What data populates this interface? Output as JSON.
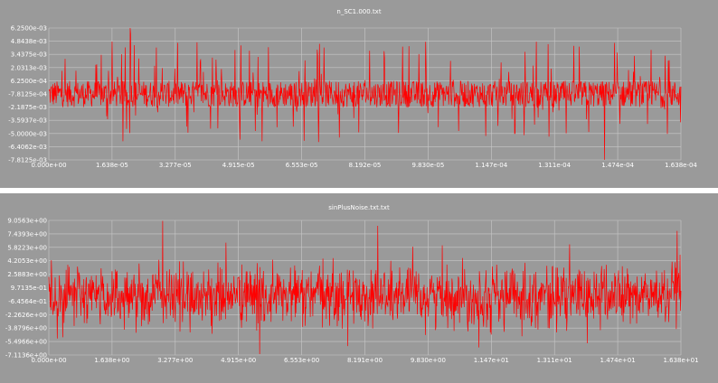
{
  "colors": {
    "background": "#9a9a9a",
    "grid": "#c8c8c8",
    "signal": "#ff0000",
    "separator": "#ffffff",
    "text": "#ffffff"
  },
  "chart_data": [
    {
      "type": "line",
      "title": "n_SC1.000.txt",
      "xlabel": "",
      "ylabel": "",
      "grid": true,
      "xlim": [
        0,
        0.0001638
      ],
      "ylim": [
        -0.0078125,
        0.00625
      ],
      "x_ticks": [
        "0.000e+00",
        "1.638e-05",
        "3.277e-05",
        "4.915e-05",
        "6.553e-05",
        "8.192e-05",
        "9.830e-05",
        "1.147e-04",
        "1.311e-04",
        "1.474e-04",
        "1.638e-04"
      ],
      "y_ticks": [
        "6.2500e-03",
        "4.8438e-03",
        "3.4375e-03",
        "2.0313e-03",
        "6.2500e-04",
        "-7.8125e-04",
        "-2.1875e-03",
        "-3.5937e-03",
        "-5.0000e-03",
        "-6.4062e-03",
        "-7.8125e-03"
      ],
      "series": [
        {
          "values_summary": "dense noise signal, mostly within about -0.0022 to 0.0006 with sparse spikes",
          "band_low": -0.0022,
          "band_high": 0.00062,
          "spike_min": -0.0078,
          "spike_max": 0.00625
        }
      ]
    },
    {
      "type": "line",
      "title": "sinPlusNoise.txt.txt",
      "xlabel": "",
      "ylabel": "",
      "grid": true,
      "xlim": [
        0,
        16.38
      ],
      "ylim": [
        -7.1136,
        9.0563
      ],
      "x_ticks": [
        "0.000e+00",
        "1.638e+00",
        "3.277e+00",
        "4.915e+00",
        "6.553e+00",
        "8.191e+00",
        "9.830e+00",
        "1.147e+01",
        "1.311e+01",
        "1.474e+01",
        "1.638e+01"
      ],
      "y_ticks": [
        "9.0563e+00",
        "7.4393e+00",
        "5.8223e+00",
        "4.2053e+00",
        "2.5883e+00",
        "9.7135e-01",
        "-6.4564e-01",
        "-2.2626e+00",
        "-3.8796e+00",
        "-5.4966e+00",
        "-7.1136e+00"
      ],
      "series": [
        {
          "values_summary": "noisy signal centered near 0, typical range about -4 to 4 with peaks near -7 and 9",
          "center": 0.0,
          "typical_amplitude": 3.3,
          "spike_min": -7.0,
          "spike_max": 9.0
        }
      ]
    }
  ]
}
